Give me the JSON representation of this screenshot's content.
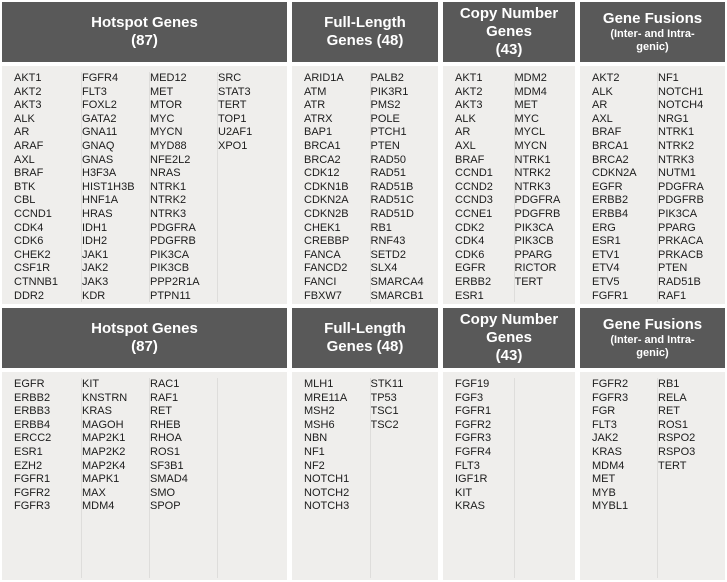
{
  "colors": {
    "header_bg": "#595959",
    "header_text": "#ffffff",
    "body_bg": "#efeeec",
    "divider": "#dedddb",
    "gene_text": "#1c1c1c",
    "page_bg": "#ffffff"
  },
  "top": [
    {
      "title_lines": [
        "Hotspot Genes",
        "(87)"
      ],
      "sub_lines": [],
      "columns": [
        [
          "AKT1",
          "AKT2",
          "AKT3",
          "ALK",
          "AR",
          "ARAF",
          "AXL",
          "BRAF",
          "BTK",
          "CBL",
          "CCND1",
          "CDK4",
          "CDK6",
          "CHEK2",
          "CSF1R",
          "CTNNB1",
          "DDR2"
        ],
        [
          "FGFR4",
          "FLT3",
          "FOXL2",
          "GATA2",
          "GNA11",
          "GNAQ",
          "GNAS",
          "H3F3A",
          "HIST1H3B",
          "HNF1A",
          "HRAS",
          "IDH1",
          "IDH2",
          "JAK1",
          "JAK2",
          "JAK3",
          "KDR"
        ],
        [
          "MED12",
          "MET",
          "MTOR",
          "MYC",
          "MYCN",
          "MYD88",
          "NFE2L2",
          "NRAS",
          "NTRK1",
          "NTRK2",
          "NTRK3",
          "PDGFRA",
          "PDGFRB",
          "PIK3CA",
          "PIK3CB",
          "PPP2R1A",
          "PTPN11"
        ],
        [
          "SRC",
          "STAT3",
          "TERT",
          "TOP1",
          "U2AF1",
          "XPO1"
        ]
      ]
    },
    {
      "title_lines": [
        "Full-Length",
        "Genes (48)"
      ],
      "sub_lines": [],
      "columns": [
        [
          "ARID1A",
          "ATM",
          "ATR",
          "ATRX",
          "BAP1",
          "BRCA1",
          "BRCA2",
          "CDK12",
          "CDKN1B",
          "CDKN2A",
          "CDKN2B",
          "CHEK1",
          "CREBBP",
          "FANCA",
          "FANCD2",
          "FANCI",
          "FBXW7"
        ],
        [
          "PALB2",
          "PIK3R1",
          "PMS2",
          "POLE",
          "PTCH1",
          "PTEN",
          "RAD50",
          "RAD51",
          "RAD51B",
          "RAD51C",
          "RAD51D",
          "RB1",
          "RNF43",
          "SETD2",
          "SLX4",
          "SMARCA4",
          "SMARCB1"
        ]
      ]
    },
    {
      "title_lines": [
        "Copy Number",
        "Genes",
        "(43)"
      ],
      "sub_lines": [],
      "columns": [
        [
          "AKT1",
          "AKT2",
          "AKT3",
          "ALK",
          "AR",
          "AXL",
          "BRAF",
          "CCND1",
          "CCND2",
          "CCND3",
          "CCNE1",
          "CDK2",
          "CDK4",
          "CDK6",
          "EGFR",
          "ERBB2",
          "ESR1"
        ],
        [
          "MDM2",
          "MDM4",
          "MET",
          "MYC",
          "MYCL",
          "MYCN",
          "NTRK1",
          "NTRK2",
          "NTRK3",
          "PDGFRA",
          "PDGFRB",
          "PIK3CA",
          "PIK3CB",
          "PPARG",
          "RICTOR",
          "TERT"
        ]
      ]
    },
    {
      "title_lines": [
        "Gene Fusions"
      ],
      "sub_lines": [
        "(Inter- and Intra-",
        "genic)"
      ],
      "columns": [
        [
          "AKT2",
          "ALK",
          "AR",
          "AXL",
          "BRAF",
          "BRCA1",
          "BRCA2",
          "CDKN2A",
          "EGFR",
          "ERBB2",
          "ERBB4",
          "ERG",
          "ESR1",
          "ETV1",
          "ETV4",
          "ETV5",
          "FGFR1"
        ],
        [
          "NF1",
          "NOTCH1",
          "NOTCH4",
          "NRG1",
          "NTRK1",
          "NTRK2",
          "NTRK3",
          "NUTM1",
          "PDGFRA",
          "PDGFRB",
          "PIK3CA",
          "PPARG",
          "PRKACA",
          "PRKACB",
          "PTEN",
          "RAD51B",
          "RAF1"
        ]
      ]
    }
  ],
  "bottom": [
    {
      "title_lines": [
        "Hotspot Genes",
        "(87)"
      ],
      "sub_lines": [],
      "columns": [
        [
          "EGFR",
          "ERBB2",
          "ERBB3",
          "ERBB4",
          "ERCC2",
          "ESR1",
          "EZH2",
          "FGFR1",
          "FGFR2",
          "FGFR3"
        ],
        [
          "KIT",
          "KNSTRN",
          "KRAS",
          "MAGOH",
          "MAP2K1",
          "MAP2K2",
          "MAP2K4",
          "MAPK1",
          "MAX",
          "MDM4"
        ],
        [
          "RAC1",
          "RAF1",
          "RET",
          "RHEB",
          "RHOA",
          "ROS1",
          "SF3B1",
          "SMAD4",
          "SMO",
          "SPOP"
        ],
        []
      ]
    },
    {
      "title_lines": [
        "Full-Length",
        "Genes (48)"
      ],
      "sub_lines": [],
      "columns": [
        [
          "MLH1",
          "MRE11A",
          "MSH2",
          "MSH6",
          "NBN",
          "NF1",
          "NF2",
          "NOTCH1",
          "NOTCH2",
          "NOTCH3"
        ],
        [
          "STK11",
          "TP53",
          "TSC1",
          "TSC2"
        ]
      ]
    },
    {
      "title_lines": [
        "Copy Number",
        "Genes",
        "(43)"
      ],
      "sub_lines": [],
      "columns": [
        [
          "FGF19",
          "FGF3",
          "FGFR1",
          "FGFR2",
          "FGFR3",
          "FGFR4",
          "FLT3",
          "IGF1R",
          "KIT",
          "KRAS"
        ],
        []
      ]
    },
    {
      "title_lines": [
        "Gene Fusions"
      ],
      "sub_lines": [
        "(Inter- and Intra-",
        "genic)"
      ],
      "columns": [
        [
          "FGFR2",
          "FGFR3",
          "FGR",
          "FLT3",
          "JAK2",
          "KRAS",
          "MDM4",
          "MET",
          "MYB",
          "MYBL1"
        ],
        [
          "RB1",
          "RELA",
          "RET",
          "ROS1",
          "RSPO2",
          "RSPO3",
          "TERT"
        ]
      ]
    }
  ]
}
